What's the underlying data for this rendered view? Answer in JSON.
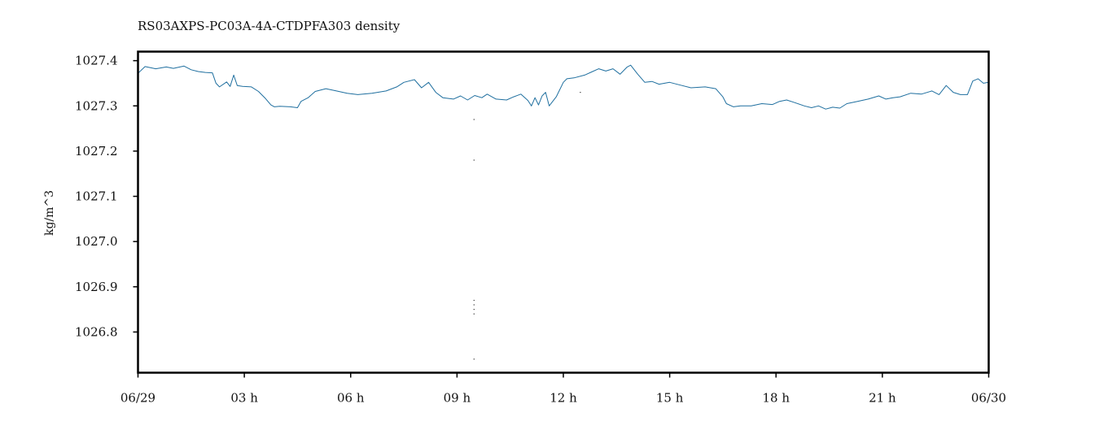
{
  "chart_data": {
    "type": "line",
    "title": "RS03AXPS-PC03A-4A-CTDPFA303 density",
    "xlabel": "",
    "ylabel": "kg/m^3",
    "xlim": [
      0,
      24
    ],
    "ylim": [
      1026.71,
      1027.42
    ],
    "x_ticks": [
      {
        "x": 0,
        "label": "06/29"
      },
      {
        "x": 3,
        "label": "03 h"
      },
      {
        "x": 6,
        "label": "06 h"
      },
      {
        "x": 9,
        "label": "09 h"
      },
      {
        "x": 12,
        "label": "12 h"
      },
      {
        "x": 15,
        "label": "15 h"
      },
      {
        "x": 18,
        "label": "18 h"
      },
      {
        "x": 21,
        "label": "21 h"
      },
      {
        "x": 24,
        "label": "06/30"
      }
    ],
    "y_ticks": [
      {
        "y": 1026.8,
        "label": "1026.8"
      },
      {
        "y": 1026.9,
        "label": "1026.9"
      },
      {
        "y": 1027.0,
        "label": "1027.0"
      },
      {
        "y": 1027.1,
        "label": "1027.1"
      },
      {
        "y": 1027.2,
        "label": "1027.2"
      },
      {
        "y": 1027.3,
        "label": "1027.3"
      },
      {
        "y": 1027.4,
        "label": "1027.4"
      }
    ],
    "grid": false,
    "legend": "none",
    "line_color": "#1f6f9f",
    "outlier_color": "#333333",
    "series": [
      {
        "x": [
          0,
          0.2,
          0.5,
          0.8,
          1.0,
          1.3,
          1.5,
          1.7,
          1.9,
          2.1,
          2.2,
          2.3,
          2.5,
          2.6,
          2.7,
          2.8,
          2.95,
          3.2,
          3.4,
          3.6,
          3.75,
          3.85,
          4.0,
          4.3,
          4.5,
          4.6,
          4.8,
          5.0,
          5.3,
          5.6,
          5.9,
          6.2,
          6.6,
          7.0,
          7.3,
          7.5,
          7.8,
          8.0,
          8.2,
          8.4,
          8.6,
          8.9,
          9.1,
          9.3,
          9.5,
          9.7,
          9.85,
          10.1,
          10.4,
          10.6,
          10.8,
          11.0,
          11.1,
          11.2,
          11.3,
          11.4,
          11.5,
          11.6,
          11.8,
          12.0,
          12.1,
          12.3,
          12.6,
          12.8,
          13.0,
          13.2,
          13.4,
          13.6,
          13.8,
          13.9,
          14.1,
          14.3,
          14.5,
          14.7,
          15.0,
          15.3,
          15.6,
          16.0,
          16.3,
          16.5,
          16.6,
          16.8,
          17.0,
          17.3,
          17.6,
          17.9,
          18.1,
          18.3,
          18.5,
          18.8,
          19.0,
          19.2,
          19.4,
          19.6,
          19.8,
          20.0,
          20.3,
          20.6,
          20.9,
          21.1,
          21.3,
          21.5,
          21.8,
          22.1,
          22.4,
          22.6,
          22.8,
          23.0,
          23.2,
          23.4,
          23.55,
          23.7,
          23.85,
          24.0
        ],
        "y": [
          1027.372,
          1027.387,
          1027.382,
          1027.386,
          1027.383,
          1027.388,
          1027.38,
          1027.376,
          1027.374,
          1027.373,
          1027.35,
          1027.342,
          1027.353,
          1027.343,
          1027.368,
          1027.345,
          1027.343,
          1027.342,
          1027.332,
          1027.316,
          1027.302,
          1027.298,
          1027.299,
          1027.298,
          1027.296,
          1027.31,
          1027.318,
          1027.332,
          1027.338,
          1027.333,
          1027.328,
          1027.325,
          1027.328,
          1027.333,
          1027.342,
          1027.352,
          1027.358,
          1027.34,
          1027.352,
          1027.33,
          1027.318,
          1027.315,
          1027.322,
          1027.313,
          1027.323,
          1027.318,
          1027.326,
          1027.315,
          1027.313,
          1027.32,
          1027.326,
          1027.312,
          1027.3,
          1027.318,
          1027.302,
          1027.322,
          1027.33,
          1027.3,
          1027.32,
          1027.352,
          1027.36,
          1027.362,
          1027.368,
          1027.375,
          1027.382,
          1027.377,
          1027.382,
          1027.37,
          1027.386,
          1027.39,
          1027.37,
          1027.352,
          1027.354,
          1027.348,
          1027.352,
          1027.346,
          1027.34,
          1027.342,
          1027.338,
          1027.32,
          1027.305,
          1027.298,
          1027.3,
          1027.3,
          1027.305,
          1027.303,
          1027.31,
          1027.313,
          1027.308,
          1027.3,
          1027.296,
          1027.3,
          1027.293,
          1027.297,
          1027.295,
          1027.305,
          1027.31,
          1027.315,
          1027.322,
          1027.315,
          1027.318,
          1027.32,
          1027.328,
          1027.326,
          1027.333,
          1027.325,
          1027.345,
          1027.33,
          1027.325,
          1027.325,
          1027.355,
          1027.36,
          1027.35,
          1027.352
        ]
      }
    ],
    "outliers": {
      "x": [
        9.48,
        9.48,
        9.48,
        9.48,
        9.48,
        9.48,
        9.48,
        12.48
      ],
      "y": [
        1027.27,
        1027.18,
        1026.87,
        1026.86,
        1026.85,
        1026.84,
        1026.74,
        1027.33
      ]
    }
  }
}
